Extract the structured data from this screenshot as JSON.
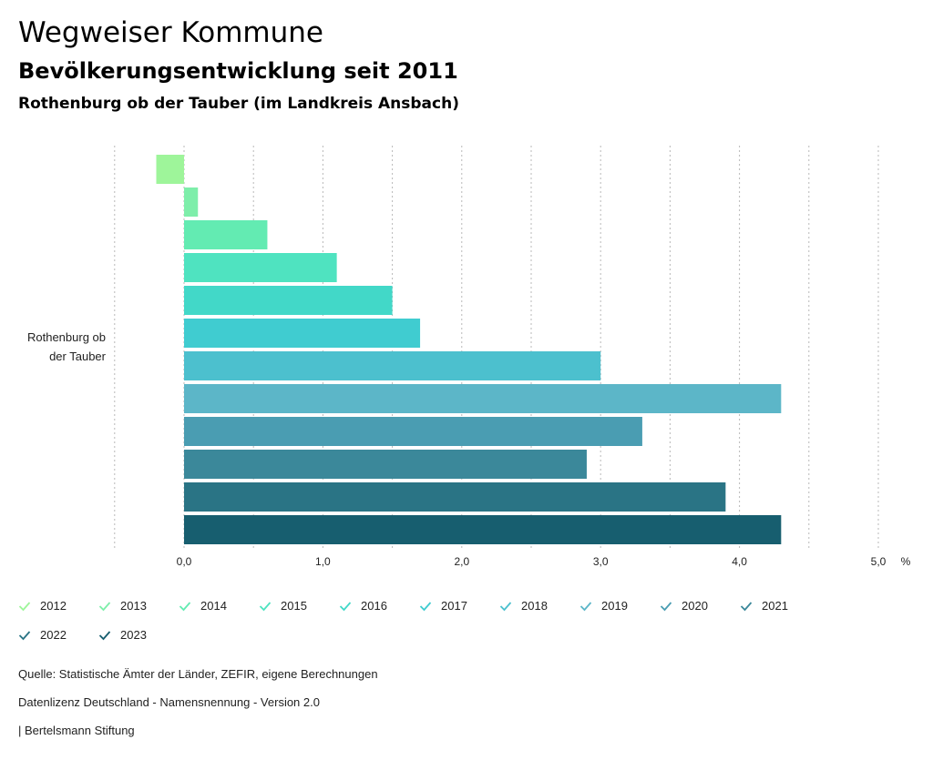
{
  "header": {
    "title": "Wegweiser Kommune",
    "subtitle": "Bevölkerungsentwicklung seit 2011",
    "region": "Rothenburg ob der Tauber (im Landkreis Ansbach)"
  },
  "chart_data": {
    "type": "bar",
    "orientation": "horizontal",
    "category": "Rothenburg ob der Tauber",
    "category_lines": [
      "Rothenburg ob",
      "der Tauber"
    ],
    "series": [
      {
        "name": "2012",
        "value": -0.2,
        "color": "#9ef59a"
      },
      {
        "name": "2013",
        "value": 0.1,
        "color": "#7eeeaa"
      },
      {
        "name": "2014",
        "value": 0.6,
        "color": "#63ebb2"
      },
      {
        "name": "2015",
        "value": 1.1,
        "color": "#4fe3c0"
      },
      {
        "name": "2016",
        "value": 1.5,
        "color": "#42d8c8"
      },
      {
        "name": "2017",
        "value": 1.7,
        "color": "#40ccd0"
      },
      {
        "name": "2018",
        "value": 3.0,
        "color": "#4cc0ce"
      },
      {
        "name": "2019",
        "value": 4.3,
        "color": "#5cb6c8"
      },
      {
        "name": "2020",
        "value": 3.3,
        "color": "#4a9db2"
      },
      {
        "name": "2021",
        "value": 2.9,
        "color": "#3b889a"
      },
      {
        "name": "2022",
        "value": 3.9,
        "color": "#2a7485"
      },
      {
        "name": "2023",
        "value": 4.3,
        "color": "#175e6f"
      }
    ],
    "xlim": [
      -0.5,
      5.0
    ],
    "ticks": [
      {
        "value": 0,
        "label": "0,0"
      },
      {
        "value": 1,
        "label": "1,0"
      },
      {
        "value": 2,
        "label": "2,0"
      },
      {
        "value": 3,
        "label": "3,0"
      },
      {
        "value": 4,
        "label": "4,0"
      },
      {
        "value": 5,
        "label": "5,0"
      }
    ],
    "unit_label": "%",
    "grid": true
  },
  "footer": {
    "source": "Quelle: Statistische Ämter der Länder, ZEFIR, eigene Berechnungen",
    "license": "Datenlizenz Deutschland - Namensnennung - Version 2.0",
    "publisher": "| Bertelsmann Stiftung"
  }
}
